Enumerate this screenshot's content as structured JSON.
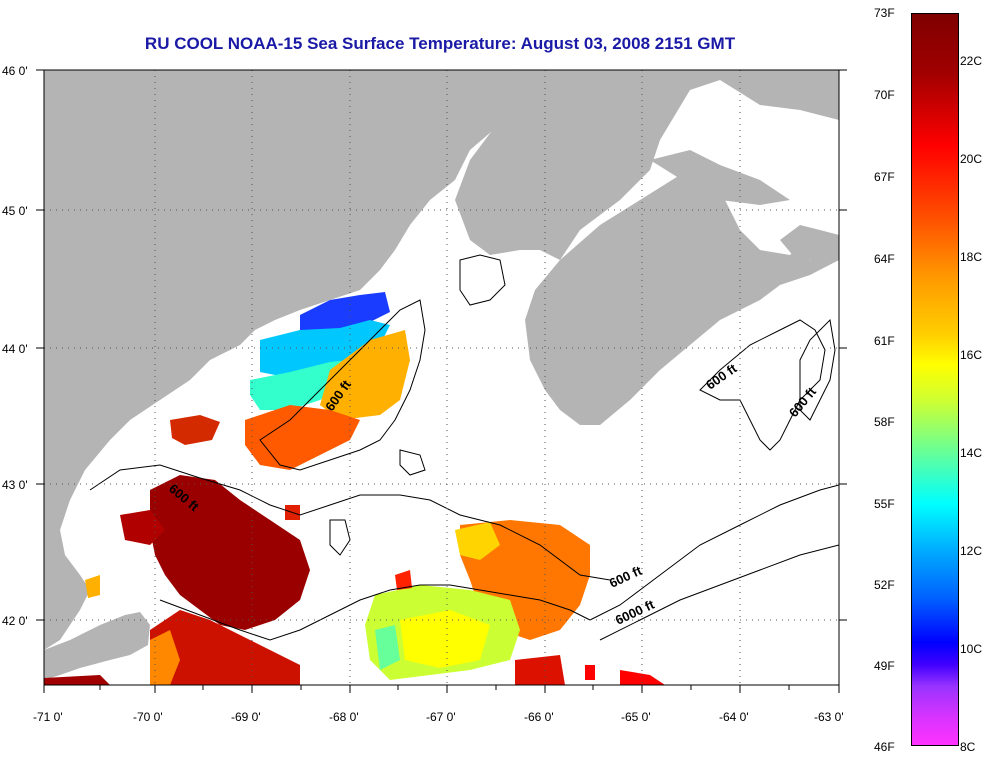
{
  "title": "RU COOL  NOAA-15  Sea Surface Temperature:  August 03, 2008 2151 GMT",
  "latitude_labels": [
    "46 0'",
    "45 0'",
    "44 0'",
    "43 0'",
    "42 0'"
  ],
  "longitude_labels": [
    "-71 0'",
    "-70 0'",
    "-69 0'",
    "-68 0'",
    "-67 0'",
    "-66 0'",
    "-65 0'",
    "-64 0'",
    "-63 0'"
  ],
  "contour_labels": [
    "600 ft",
    "600 ft",
    "600 ft",
    "600 ft",
    "600 ft",
    "6000 ft"
  ],
  "colorbar": {
    "fahrenheit": [
      "73F",
      "70F",
      "67F",
      "64F",
      "61F",
      "58F",
      "55F",
      "52F",
      "49F",
      "46F"
    ],
    "celsius": [
      "22C",
      "20C",
      "18C",
      "16C",
      "14C",
      "12C",
      "10C",
      "8C"
    ]
  },
  "colors": {
    "land": "#b4b4b4",
    "title": "#1a1aa6",
    "grid": "#555555"
  }
}
